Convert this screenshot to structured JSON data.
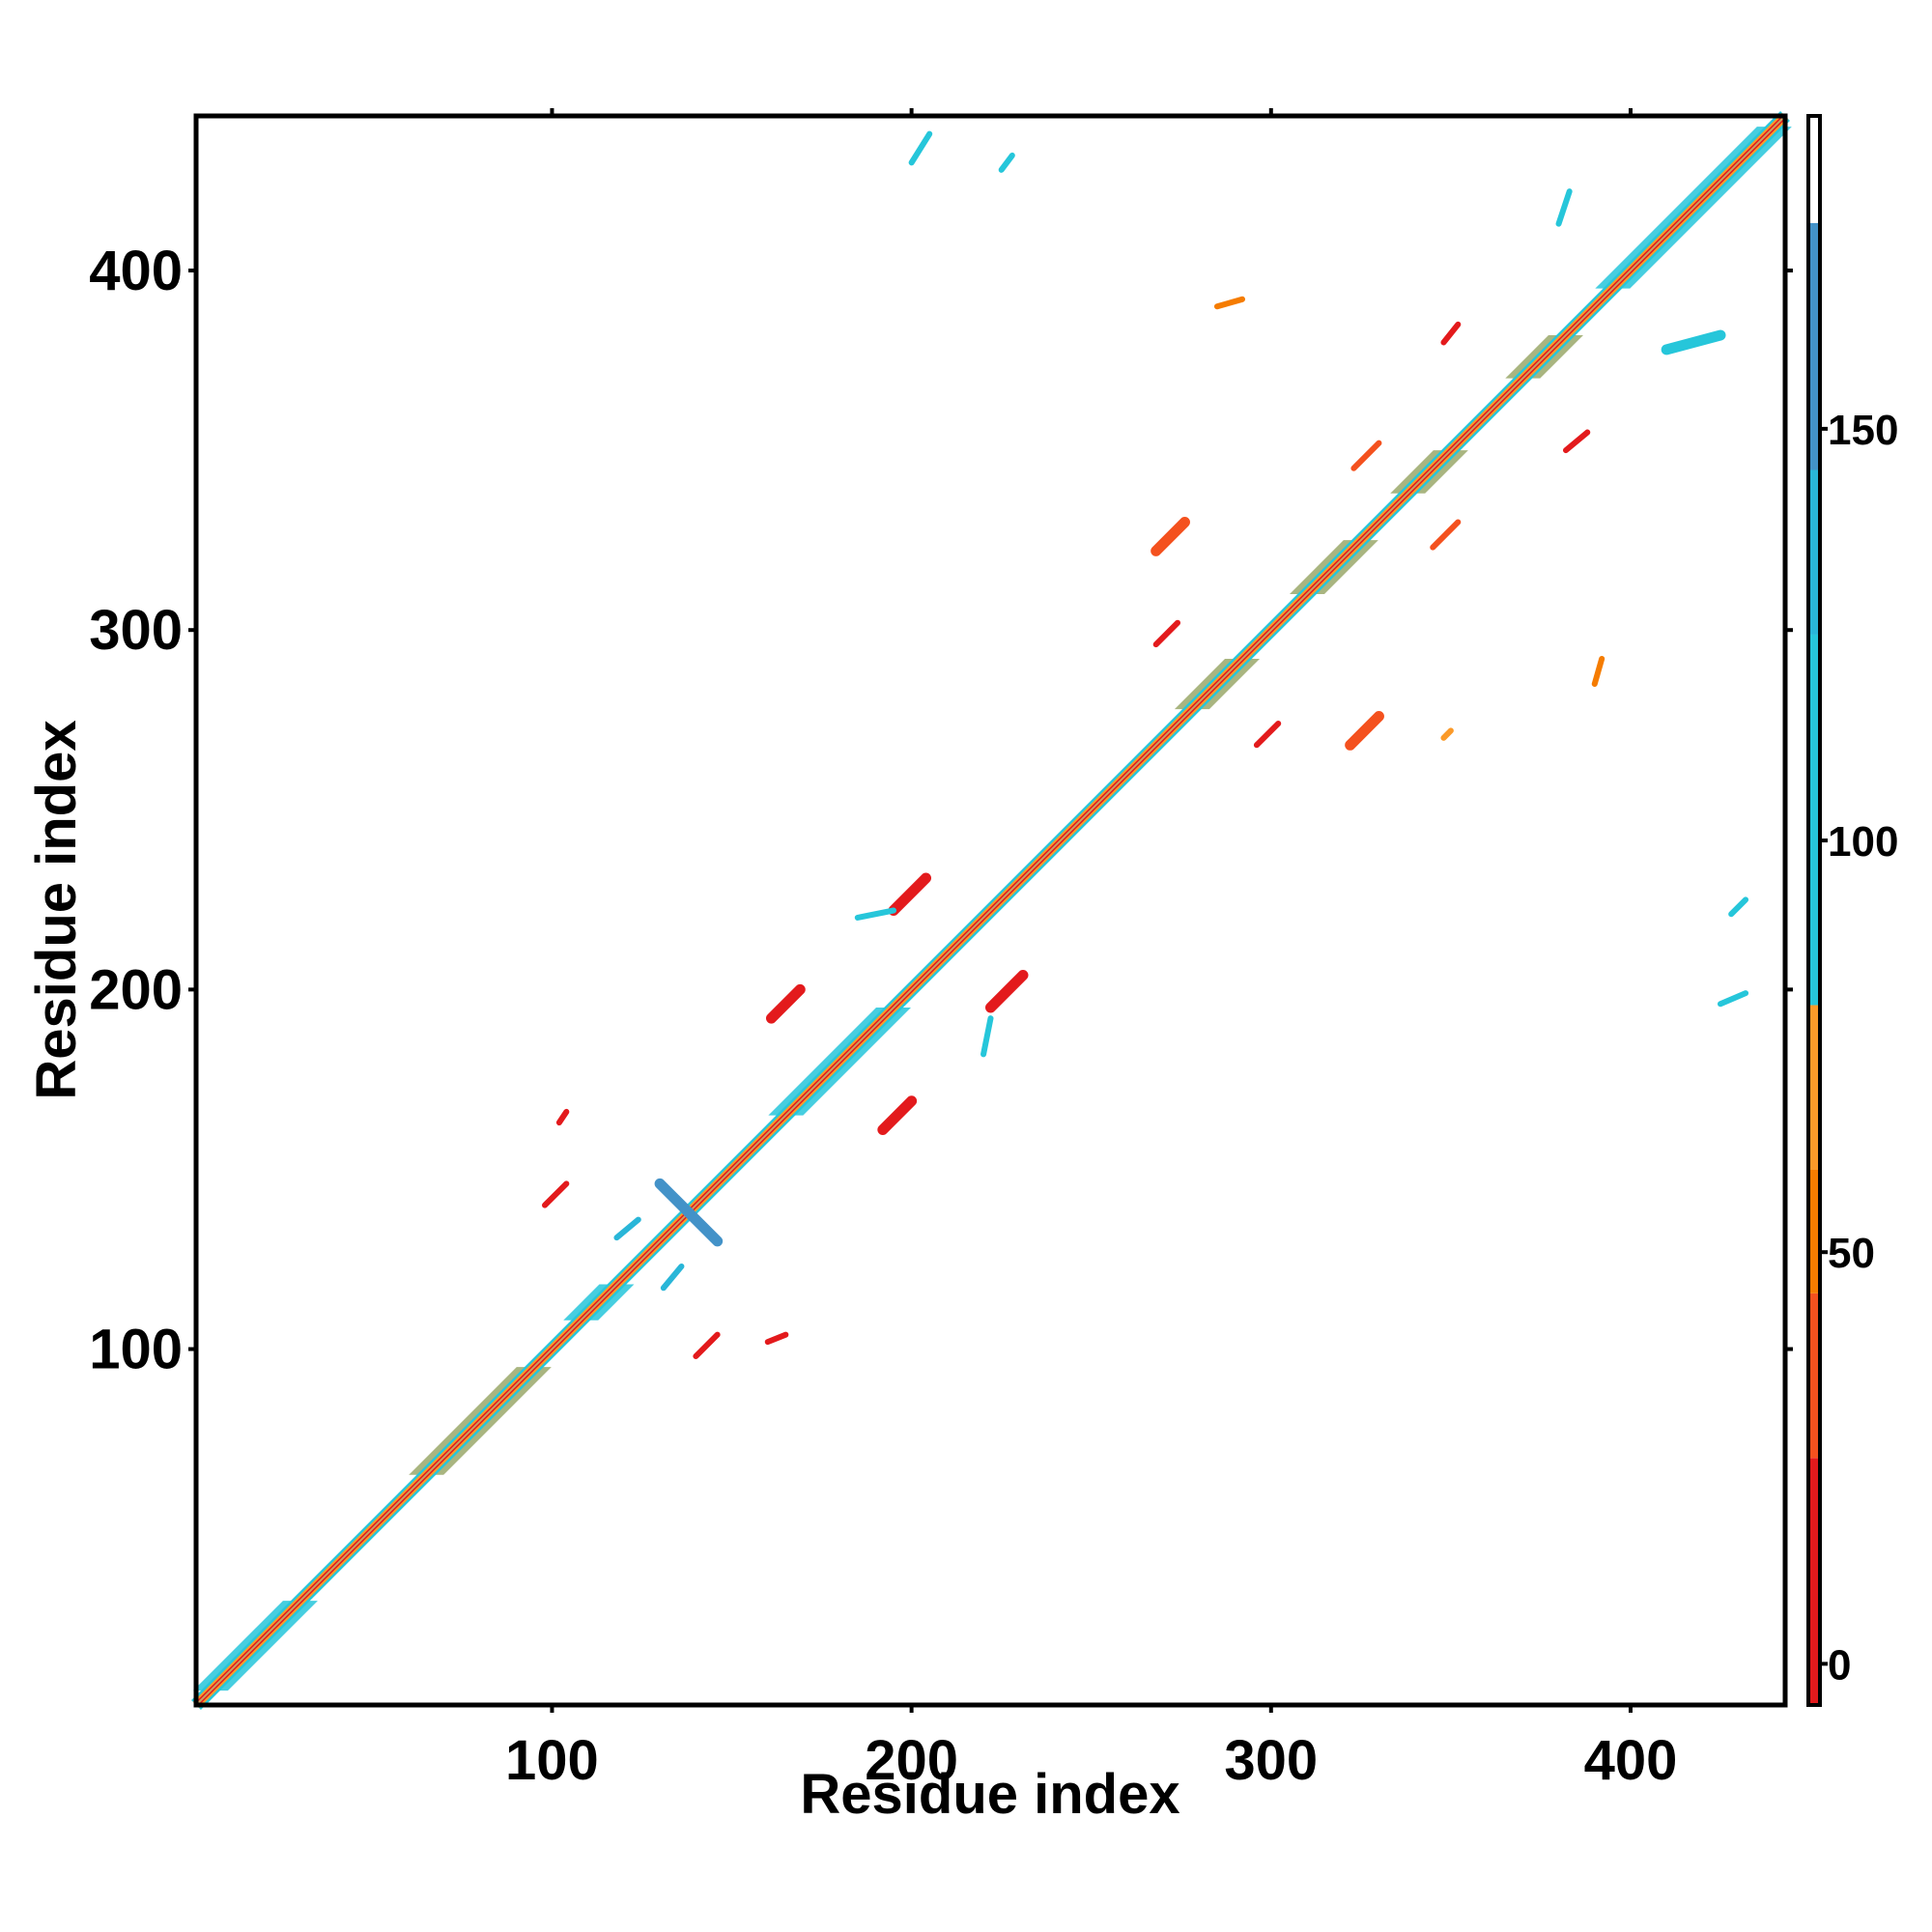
{
  "chart_data": {
    "type": "heatmap",
    "title": "",
    "xlabel": "Residue index",
    "ylabel": "Residue index",
    "xlim": [
      1,
      443
    ],
    "ylim": [
      1,
      443
    ],
    "x_ticks": [
      100,
      200,
      300,
      400
    ],
    "y_ticks": [
      100,
      200,
      300,
      400
    ],
    "grid": false,
    "colorbar": {
      "range": [
        -5,
        188
      ],
      "ticks": [
        0,
        50,
        100,
        150
      ],
      "bands": [
        {
          "from": -5,
          "to": 25,
          "color": "#e31a1c"
        },
        {
          "from": 25,
          "to": 45,
          "color": "#f4511e"
        },
        {
          "from": 45,
          "to": 60,
          "color": "#f57c00"
        },
        {
          "from": 60,
          "to": 80,
          "color": "#fb9a29"
        },
        {
          "from": 80,
          "to": 125,
          "color": "#26c6da"
        },
        {
          "from": 125,
          "to": 145,
          "color": "#29b6d8"
        },
        {
          "from": 145,
          "to": 175,
          "color": "#4392c8"
        },
        {
          "from": 175,
          "to": 188,
          "color": "#ffffff"
        }
      ]
    },
    "diagonal": {
      "from": 1,
      "to": 443
    },
    "blocks": [
      {
        "x": [
          5,
          30
        ],
        "y": [
          5,
          30
        ],
        "color": "#26c6da"
      },
      {
        "x": [
          65,
          95
        ],
        "y": [
          65,
          95
        ],
        "color": "#9aa86a"
      },
      {
        "x": [
          108,
          118
        ],
        "y": [
          108,
          118
        ],
        "color": "#26c6da"
      },
      {
        "x": [
          165,
          195
        ],
        "y": [
          165,
          195
        ],
        "color": "#26c6da"
      },
      {
        "x": [
          278,
          292
        ],
        "y": [
          278,
          292
        ],
        "color": "#9aa86a"
      },
      {
        "x": [
          310,
          325
        ],
        "y": [
          310,
          325
        ],
        "color": "#9aa86a"
      },
      {
        "x": [
          338,
          350
        ],
        "y": [
          338,
          350
        ],
        "color": "#9aa86a"
      },
      {
        "x": [
          370,
          382
        ],
        "y": [
          370,
          382
        ],
        "color": "#9aa86a"
      },
      {
        "x": [
          395,
          440
        ],
        "y": [
          395,
          440
        ],
        "color": "#26c6da"
      }
    ],
    "contacts": [
      {
        "x": [
          98,
          104
        ],
        "y": [
          140,
          146
        ],
        "dir": "parallel",
        "color": "#e31a1c"
      },
      {
        "x": [
          140,
          146
        ],
        "y": [
          98,
          104
        ],
        "dir": "parallel",
        "color": "#e31a1c"
      },
      {
        "x": [
          161,
          169
        ],
        "y": [
          192,
          200
        ],
        "dir": "parallel",
        "color": "#e31a1c"
      },
      {
        "x": [
          192,
          200
        ],
        "y": [
          161,
          169
        ],
        "dir": "parallel",
        "color": "#e31a1c"
      },
      {
        "x": [
          195,
          204
        ],
        "y": [
          222,
          231
        ],
        "dir": "parallel",
        "color": "#e31a1c"
      },
      {
        "x": [
          222,
          231
        ],
        "y": [
          195,
          204
        ],
        "dir": "parallel",
        "color": "#e31a1c"
      },
      {
        "x": [
          268,
          274
        ],
        "y": [
          296,
          302
        ],
        "dir": "parallel",
        "color": "#e31a1c"
      },
      {
        "x": [
          296,
          302
        ],
        "y": [
          268,
          274
        ],
        "dir": "parallel",
        "color": "#e31a1c"
      },
      {
        "x": [
          268,
          276
        ],
        "y": [
          322,
          330
        ],
        "dir": "parallel",
        "color": "#f4511e"
      },
      {
        "x": [
          322,
          330
        ],
        "y": [
          268,
          276
        ],
        "dir": "parallel",
        "color": "#f4511e"
      },
      {
        "x": [
          323,
          330
        ],
        "y": [
          345,
          352
        ],
        "dir": "parallel",
        "color": "#f4511e"
      },
      {
        "x": [
          345,
          352
        ],
        "y": [
          323,
          330
        ],
        "dir": "parallel",
        "color": "#f4511e"
      },
      {
        "x": [
          348,
          352
        ],
        "y": [
          380,
          385
        ],
        "dir": "parallel",
        "color": "#e31a1c"
      },
      {
        "x": [
          382,
          388
        ],
        "y": [
          350,
          355
        ],
        "dir": "parallel",
        "color": "#e31a1c"
      },
      {
        "x": [
          130,
          146
        ],
        "y": [
          130,
          146
        ],
        "dir": "anti",
        "color": "#4392c8"
      },
      {
        "x": [
          160,
          165
        ],
        "y": [
          102,
          104
        ],
        "dir": "parallel",
        "color": "#e31a1c"
      },
      {
        "x": [
          102,
          104
        ],
        "y": [
          163,
          166
        ],
        "dir": "parallel",
        "color": "#e31a1c"
      },
      {
        "x": [
          285,
          292
        ],
        "y": [
          390,
          392
        ],
        "dir": "parallel",
        "color": "#f57c00"
      },
      {
        "x": [
          390,
          392
        ],
        "y": [
          285,
          292
        ],
        "dir": "parallel",
        "color": "#f57c00"
      },
      {
        "x": [
          348,
          350
        ],
        "y": [
          270,
          272
        ],
        "dir": "parallel",
        "color": "#fb9a29"
      },
      {
        "x": [
          200,
          205
        ],
        "y": [
          430,
          438
        ],
        "dir": "parallel",
        "color": "#26c6da"
      },
      {
        "x": [
          225,
          228
        ],
        "y": [
          428,
          432
        ],
        "dir": "parallel",
        "color": "#26c6da"
      },
      {
        "x": [
          380,
          383
        ],
        "y": [
          413,
          422
        ],
        "dir": "parallel",
        "color": "#26c6da"
      },
      {
        "x": [
          410,
          425
        ],
        "y": [
          378,
          382
        ],
        "dir": "parallel",
        "color": "#26c6da"
      },
      {
        "x": [
          425,
          432
        ],
        "y": [
          196,
          199
        ],
        "dir": "parallel",
        "color": "#26c6da"
      },
      {
        "x": [
          428,
          432
        ],
        "y": [
          221,
          225
        ],
        "dir": "parallel",
        "color": "#26c6da"
      },
      {
        "x": [
          118,
          124
        ],
        "y": [
          131,
          136
        ],
        "dir": "parallel",
        "color": "#29b6d8"
      },
      {
        "x": [
          131,
          136
        ],
        "y": [
          117,
          123
        ],
        "dir": "parallel",
        "color": "#29b6d8"
      },
      {
        "x": [
          185,
          195
        ],
        "y": [
          220,
          222
        ],
        "dir": "parallel",
        "color": "#26c6da"
      },
      {
        "x": [
          220,
          222
        ],
        "y": [
          182,
          192
        ],
        "dir": "parallel",
        "color": "#26c6da"
      }
    ]
  }
}
